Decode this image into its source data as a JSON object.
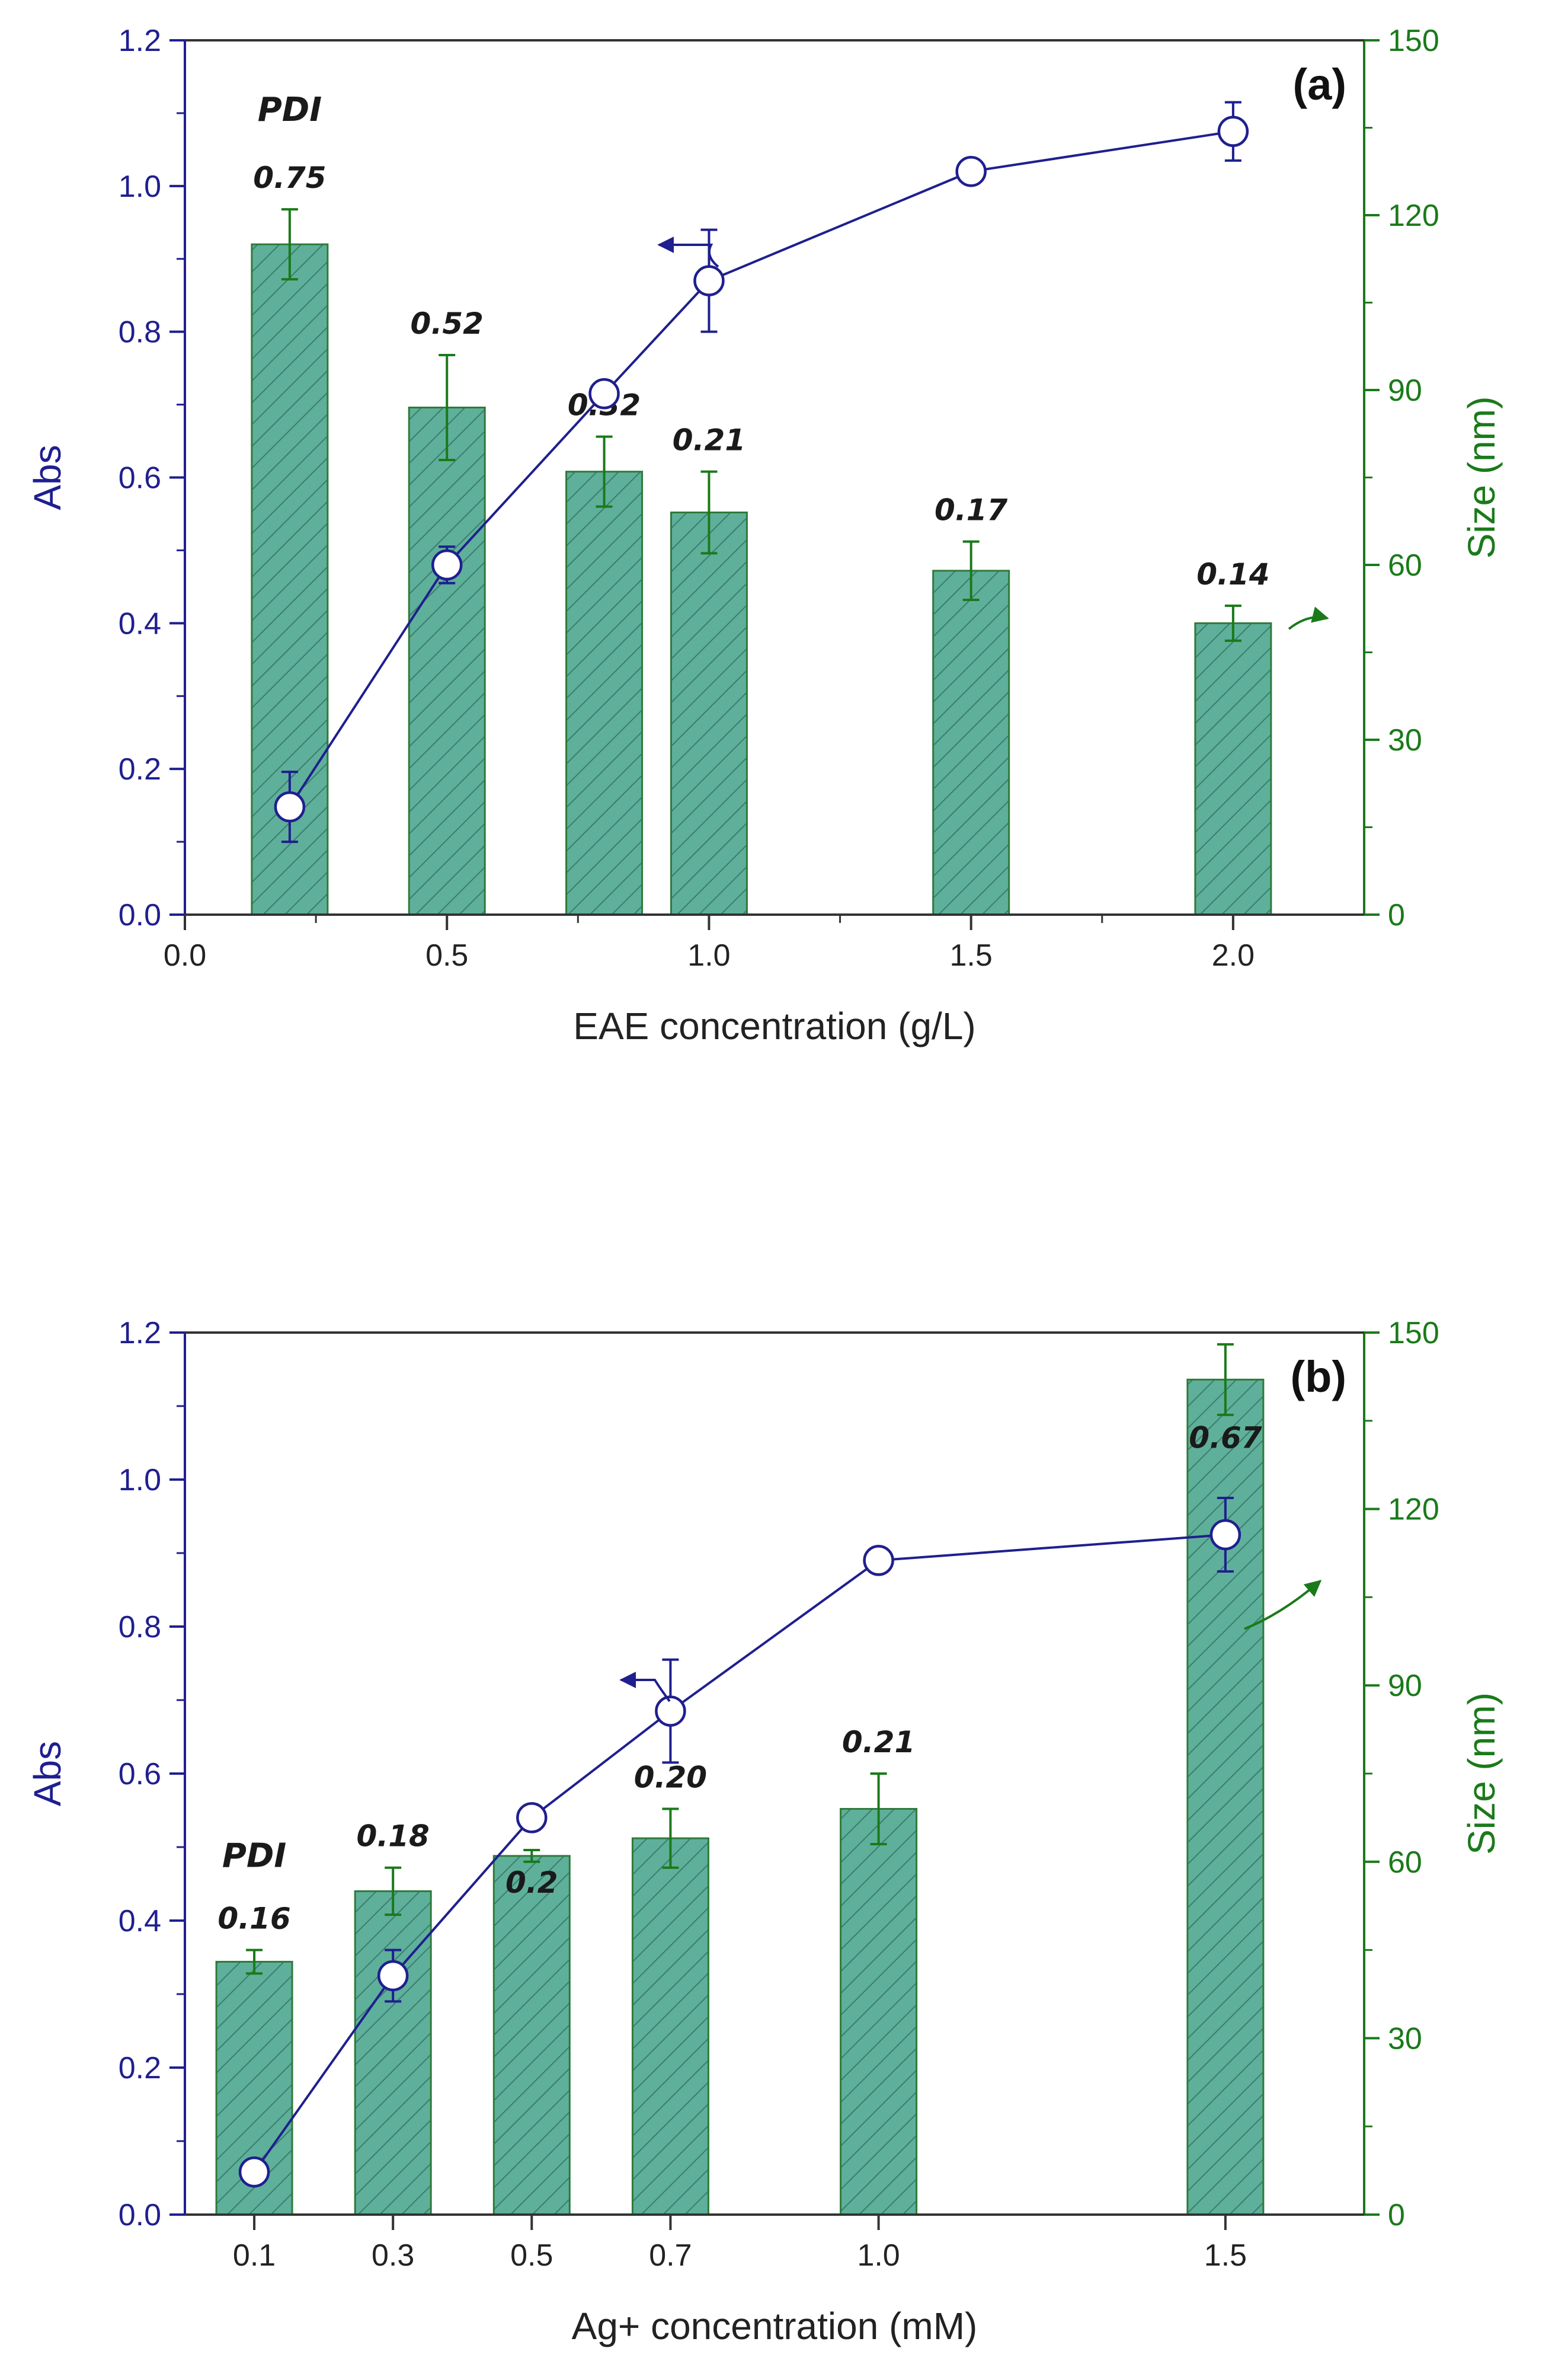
{
  "colors": {
    "abs": "#1f1f8f",
    "size": "#1a7a1a",
    "bar_fill": "#5fb09a",
    "bar_edge": "#2f7a3a",
    "hatch": "#3b7d6f",
    "text": "#1a1a1a"
  },
  "chart_data": [
    {
      "type": "bar",
      "panel_label": "(a)",
      "xlabel": "EAE concentration (g/L)",
      "ylabel": "Abs",
      "y2label": "Size (nm)",
      "xlim": [
        0.0,
        2.25
      ],
      "ylim": [
        0.0,
        1.2
      ],
      "y2lim": [
        0,
        150
      ],
      "xticks": [
        0.0,
        0.5,
        1.0,
        1.5,
        2.0
      ],
      "xtick_labels": [
        "0.0",
        "0.5",
        "1.0",
        "1.5",
        "2.0"
      ],
      "yticks": [
        0.0,
        0.2,
        0.4,
        0.6,
        0.8,
        1.0,
        1.2
      ],
      "ytick_labels": [
        "0.0",
        "0.2",
        "0.4",
        "0.6",
        "0.8",
        "1.0",
        "1.2"
      ],
      "y2ticks": [
        0,
        30,
        60,
        90,
        120,
        150
      ],
      "y2tick_labels": [
        "0",
        "30",
        "60",
        "90",
        "120",
        "150"
      ],
      "pdi_header": "PDI",
      "size_bars": {
        "name": "Size (nm)",
        "x": [
          0.2,
          0.5,
          0.8,
          1.0,
          1.5,
          2.0
        ],
        "values": [
          115,
          87,
          76,
          69,
          59,
          50
        ],
        "errors": [
          6,
          9,
          6,
          7,
          5,
          3
        ],
        "pdi_labels": [
          "0.75",
          "0.52",
          "0.32",
          "0.21",
          "0.17",
          "0.14"
        ]
      },
      "abs_line": {
        "name": "Abs",
        "x": [
          0.2,
          0.5,
          0.8,
          1.0,
          1.5,
          2.0
        ],
        "values": [
          0.148,
          0.48,
          0.715,
          0.87,
          1.02,
          1.075
        ],
        "errors": [
          0.048,
          0.025,
          0.012,
          0.07,
          0.015,
          0.04
        ]
      }
    },
    {
      "type": "bar",
      "panel_label": "(b)",
      "xlabel": "Ag+ concentration (mM)",
      "ylabel": "Abs",
      "y2label": "Size (nm)",
      "xlim": [
        0.0,
        1.7
      ],
      "ylim": [
        0.0,
        1.2
      ],
      "y2lim": [
        0,
        150
      ],
      "xticks": [
        0.1,
        0.3,
        0.5,
        0.7,
        1.0,
        1.5
      ],
      "xtick_labels": [
        "0.1",
        "0.3",
        "0.5",
        "0.7",
        "1.0",
        "1.5"
      ],
      "yticks": [
        0.0,
        0.2,
        0.4,
        0.6,
        0.8,
        1.0,
        1.2
      ],
      "ytick_labels": [
        "0.0",
        "0.2",
        "0.4",
        "0.6",
        "0.8",
        "1.0",
        "1.2"
      ],
      "y2ticks": [
        0,
        30,
        60,
        90,
        120,
        150
      ],
      "y2tick_labels": [
        "0",
        "30",
        "60",
        "90",
        "120",
        "150"
      ],
      "pdi_header": "PDI",
      "size_bars": {
        "name": "Size (nm)",
        "x": [
          0.1,
          0.3,
          0.5,
          0.7,
          1.0,
          1.5
        ],
        "values": [
          43,
          55,
          61,
          64,
          69,
          142
        ],
        "errors": [
          2,
          4,
          1,
          5,
          6,
          6
        ],
        "pdi_labels": [
          "0.16",
          "0.18",
          "0.2",
          "0.20",
          "0.21",
          "0.67"
        ]
      },
      "abs_line": {
        "name": "Abs",
        "x": [
          0.1,
          0.3,
          0.5,
          0.7,
          1.0,
          1.5
        ],
        "values": [
          0.058,
          0.325,
          0.54,
          0.685,
          0.89,
          0.925
        ],
        "errors": [
          0.005,
          0.035,
          0.012,
          0.07,
          0.008,
          0.05
        ]
      }
    }
  ]
}
